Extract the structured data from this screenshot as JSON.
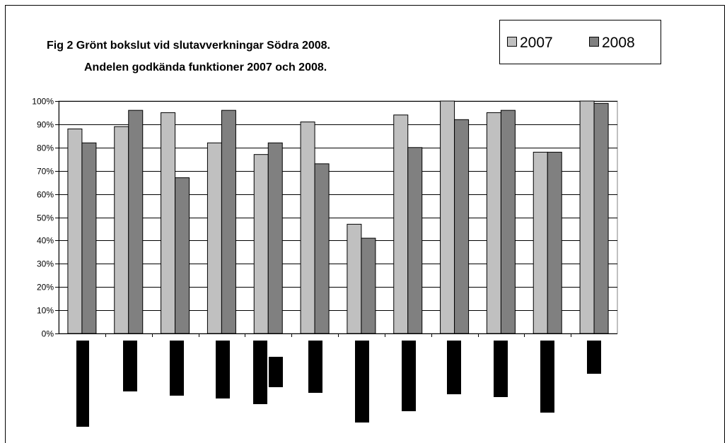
{
  "chart_data": {
    "type": "bar",
    "title_line1": "Fig 2   Grönt bokslut vid slutavverkningar Södra 2008.",
    "title_line2": "Andelen godkända funktioner 2007 och 2008.",
    "xlabel": "",
    "ylabel": "",
    "ylim": [
      0,
      100
    ],
    "yticks": [
      "0%",
      "10%",
      "20%",
      "30%",
      "40%",
      "50%",
      "60%",
      "70%",
      "80%",
      "90%",
      "100%"
    ],
    "grid": true,
    "legend_position": "top-right",
    "categories": [
      "",
      "",
      "",
      "",
      "",
      "",
      "",
      "",
      "",
      "",
      "",
      ""
    ],
    "series": [
      {
        "name": "2007",
        "color": "#c0c0c0",
        "values": [
          88,
          89,
          95,
          82,
          77,
          91,
          47,
          94,
          100,
          95,
          78,
          100
        ]
      },
      {
        "name": "2008",
        "color": "#808080",
        "values": [
          82,
          96,
          67,
          96,
          82,
          73,
          41,
          80,
          92,
          96,
          78,
          99
        ]
      }
    ]
  }
}
